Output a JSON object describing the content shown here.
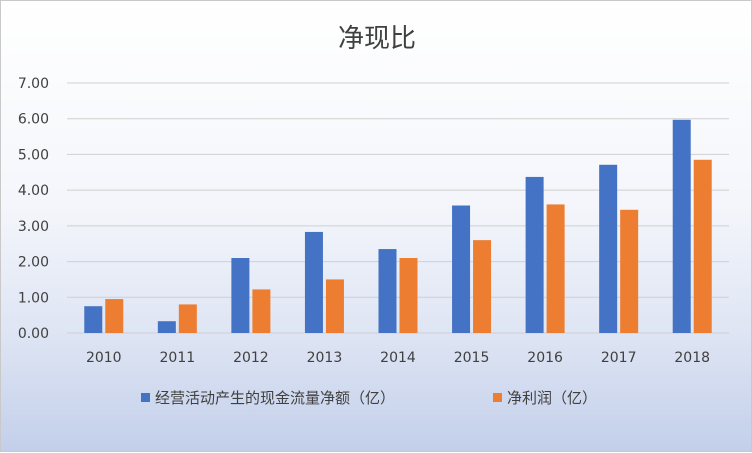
{
  "chart_data": {
    "type": "bar",
    "title": "净现比",
    "xlabel": "",
    "ylabel": "",
    "categories": [
      "2010",
      "2011",
      "2012",
      "2013",
      "2014",
      "2015",
      "2016",
      "2017",
      "2018"
    ],
    "series": [
      {
        "name": "经营活动产生的现金流量净额（亿）",
        "color": "#4472C4",
        "values": [
          0.75,
          0.33,
          2.1,
          2.83,
          2.35,
          3.57,
          4.37,
          4.71,
          5.97
        ]
      },
      {
        "name": "净利润（亿）",
        "color": "#ED7D31",
        "values": [
          0.95,
          0.8,
          1.22,
          1.5,
          2.1,
          2.6,
          3.6,
          3.45,
          4.85
        ]
      }
    ],
    "ylim": [
      0,
      7
    ],
    "yticks": [
      "0.00",
      "1.00",
      "2.00",
      "3.00",
      "4.00",
      "5.00",
      "6.00",
      "7.00"
    ],
    "grid": true,
    "legend": "bottom"
  }
}
